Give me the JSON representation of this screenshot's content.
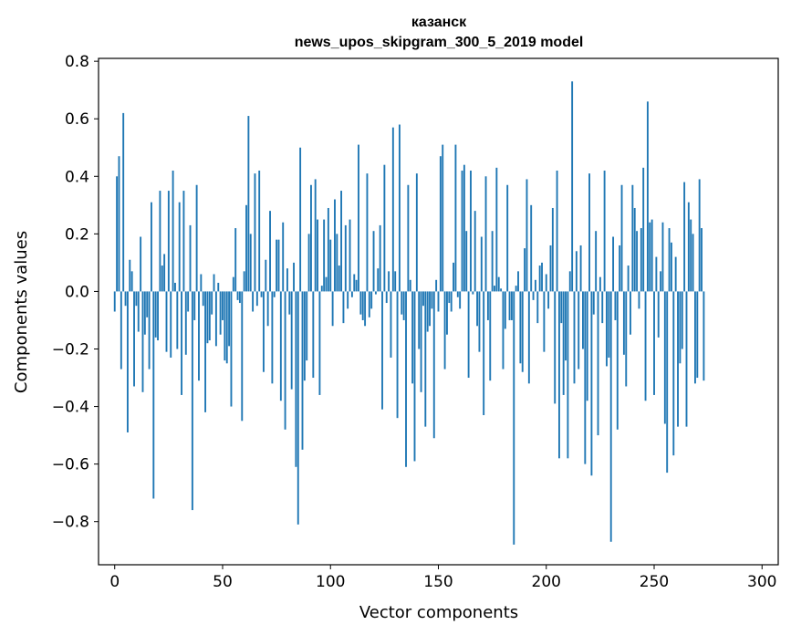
{
  "chart_data": {
    "type": "bar",
    "title": "казанск",
    "subtitle": "news_upos_skipgram_300_5_2019 model",
    "xlabel": "Vector components",
    "ylabel": "Components values",
    "xlim": [
      -7.5,
      307.5
    ],
    "ylim": [
      -0.95,
      0.81
    ],
    "xticks": [
      0,
      50,
      100,
      150,
      200,
      250,
      300
    ],
    "yticks": [
      -0.8,
      -0.6,
      -0.4,
      -0.2,
      0.0,
      0.2,
      0.4,
      0.6,
      0.8
    ],
    "grid": false,
    "bar_color": "#1f77b4",
    "values": [
      -0.07,
      0.4,
      0.47,
      -0.27,
      0.62,
      -0.05,
      -0.49,
      0.11,
      0.07,
      -0.33,
      -0.05,
      -0.14,
      0.19,
      -0.35,
      -0.15,
      -0.09,
      -0.27,
      0.31,
      -0.72,
      -0.16,
      -0.17,
      0.35,
      0.09,
      0.13,
      -0.21,
      0.35,
      -0.23,
      0.42,
      0.03,
      -0.2,
      0.31,
      -0.36,
      0.35,
      -0.22,
      -0.07,
      0.23,
      -0.76,
      -0.1,
      0.37,
      -0.31,
      0.06,
      -0.05,
      -0.42,
      -0.18,
      -0.17,
      -0.08,
      0.06,
      -0.19,
      0.03,
      -0.15,
      -0.1,
      -0.24,
      -0.25,
      -0.19,
      -0.4,
      0.05,
      0.22,
      -0.03,
      -0.04,
      -0.45,
      0.07,
      0.3,
      0.61,
      0.2,
      -0.07,
      0.41,
      -0.05,
      0.42,
      -0.02,
      -0.28,
      0.11,
      -0.12,
      0.28,
      -0.32,
      -0.02,
      0.18,
      0.18,
      -0.38,
      0.24,
      -0.48,
      0.08,
      -0.08,
      -0.34,
      0.1,
      -0.61,
      -0.81,
      0.5,
      -0.55,
      -0.31,
      -0.24,
      0.2,
      0.37,
      -0.3,
      0.39,
      0.25,
      -0.36,
      0.02,
      0.25,
      0.05,
      0.29,
      0.18,
      -0.12,
      0.32,
      0.2,
      0.09,
      0.35,
      -0.11,
      0.23,
      -0.06,
      0.25,
      -0.02,
      0.06,
      0.04,
      0.51,
      -0.08,
      -0.1,
      -0.12,
      0.41,
      -0.09,
      -0.06,
      0.21,
      -0.01,
      0.08,
      0.23,
      -0.41,
      0.44,
      -0.04,
      0.07,
      -0.23,
      0.57,
      0.07,
      -0.44,
      0.58,
      -0.08,
      -0.1,
      -0.61,
      0.37,
      0.04,
      -0.32,
      -0.59,
      0.41,
      -0.2,
      -0.35,
      -0.05,
      -0.47,
      -0.14,
      -0.12,
      -0.06,
      -0.51,
      0.04,
      -0.07,
      0.47,
      0.51,
      -0.27,
      -0.15,
      -0.04,
      -0.07,
      0.1,
      0.51,
      -0.02,
      -0.06,
      0.42,
      0.44,
      0.21,
      -0.3,
      0.42,
      -0.01,
      0.28,
      -0.12,
      -0.21,
      0.19,
      -0.43,
      0.4,
      -0.1,
      -0.31,
      0.21,
      0.02,
      0.43,
      0.05,
      0.01,
      -0.27,
      -0.13,
      0.37,
      -0.1,
      -0.1,
      -0.88,
      0.02,
      0.07,
      -0.25,
      -0.28,
      0.15,
      0.39,
      -0.32,
      0.3,
      -0.03,
      0.04,
      -0.11,
      0.09,
      0.1,
      -0.21,
      0.06,
      -0.06,
      0.16,
      0.29,
      -0.39,
      0.42,
      -0.58,
      -0.11,
      -0.36,
      -0.24,
      -0.58,
      0.07,
      0.73,
      -0.32,
      0.14,
      -0.27,
      0.16,
      -0.2,
      -0.6,
      -0.38,
      0.41,
      -0.64,
      -0.08,
      0.21,
      -0.5,
      0.05,
      -0.11,
      0.42,
      -0.26,
      -0.23,
      -0.87,
      0.19,
      -0.1,
      -0.48,
      0.16,
      0.37,
      -0.22,
      -0.33,
      0.09,
      -0.15,
      0.37,
      0.29,
      0.21,
      -0.06,
      0.22,
      0.43,
      -0.38,
      0.66,
      0.24,
      0.25,
      -0.36,
      0.12,
      -0.16,
      0.07,
      0.24,
      -0.46,
      -0.63,
      0.22,
      0.17,
      -0.57,
      0.12,
      -0.47,
      -0.25,
      -0.2,
      0.38,
      -0.47,
      0.31,
      0.25,
      0.2,
      -0.32,
      -0.3,
      0.39,
      0.22,
      -0.31
    ]
  }
}
